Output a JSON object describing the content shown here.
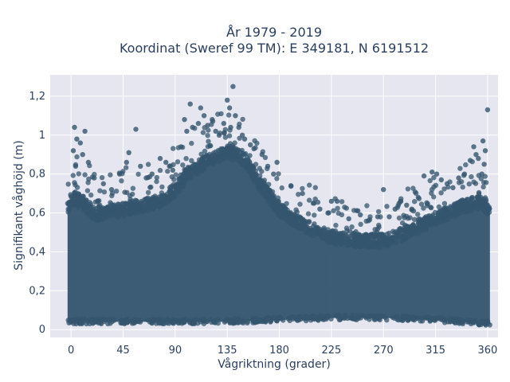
{
  "chart_data": {
    "type": "scatter",
    "title_line1": "År 1979 - 2019",
    "title_line2": "Koordinat (Sweref 99 TM): E 349181, N 6191512",
    "xlabel": "Vågriktning (grader)",
    "ylabel": "Signifikant våghöjd (m)",
    "xlim": [
      -18,
      369
    ],
    "ylim": [
      -0.04,
      1.31
    ],
    "x_ticks": [
      0,
      45,
      90,
      135,
      180,
      225,
      270,
      315,
      360
    ],
    "x_tick_labels": [
      "0",
      "45",
      "90",
      "135",
      "180",
      "225",
      "270",
      "315",
      "360"
    ],
    "y_ticks": [
      0,
      0.2,
      0.4,
      0.6,
      0.8,
      1.0,
      1.2
    ],
    "y_tick_labels": [
      "0",
      "0,2",
      "0,4",
      "0,6",
      "0,8",
      "1",
      "1,2"
    ],
    "grid": true,
    "colors": {
      "marker": "#34566e",
      "plot_bg": "#e5e6f0",
      "grid": "#ffffff",
      "text": "#2a3f5f"
    },
    "dense_band": {
      "x_range": [
        -3,
        362
      ],
      "upper_envelope": [
        [
          -3,
          0.62
        ],
        [
          0,
          0.68
        ],
        [
          10,
          0.66
        ],
        [
          20,
          0.6
        ],
        [
          30,
          0.6
        ],
        [
          45,
          0.62
        ],
        [
          60,
          0.64
        ],
        [
          75,
          0.66
        ],
        [
          90,
          0.72
        ],
        [
          100,
          0.8
        ],
        [
          115,
          0.86
        ],
        [
          135,
          0.92
        ],
        [
          150,
          0.88
        ],
        [
          160,
          0.78
        ],
        [
          170,
          0.7
        ],
        [
          180,
          0.62
        ],
        [
          200,
          0.54
        ],
        [
          225,
          0.48
        ],
        [
          250,
          0.46
        ],
        [
          270,
          0.46
        ],
        [
          290,
          0.5
        ],
        [
          310,
          0.56
        ],
        [
          325,
          0.6
        ],
        [
          340,
          0.64
        ],
        [
          355,
          0.66
        ],
        [
          362,
          0.62
        ]
      ],
      "lower_envelope": [
        [
          -3,
          0.04
        ],
        [
          45,
          0.04
        ],
        [
          90,
          0.04
        ],
        [
          135,
          0.04
        ],
        [
          180,
          0.05
        ],
        [
          225,
          0.06
        ],
        [
          270,
          0.06
        ],
        [
          315,
          0.05
        ],
        [
          362,
          0.03
        ]
      ]
    },
    "outliers": [
      [
        3,
        1.04
      ],
      [
        12,
        1.02
      ],
      [
        5,
        0.98
      ],
      [
        8,
        0.96
      ],
      [
        2,
        0.92
      ],
      [
        10,
        0.9
      ],
      [
        15,
        0.86
      ],
      [
        4,
        0.84
      ],
      [
        20,
        0.78
      ],
      [
        28,
        0.75
      ],
      [
        35,
        0.72
      ],
      [
        42,
        0.8
      ],
      [
        48,
        0.86
      ],
      [
        50,
        0.91
      ],
      [
        56,
        1.03
      ],
      [
        60,
        0.84
      ],
      [
        65,
        0.78
      ],
      [
        70,
        0.8
      ],
      [
        77,
        0.88
      ],
      [
        82,
        0.86
      ],
      [
        85,
        0.84
      ],
      [
        88,
        0.82
      ],
      [
        95,
        0.94
      ],
      [
        98,
        1.08
      ],
      [
        100,
        1.02
      ],
      [
        103,
        1.16
      ],
      [
        105,
        1.04
      ],
      [
        110,
        1.06
      ],
      [
        112,
        1.14
      ],
      [
        115,
        1.1
      ],
      [
        118,
        1.05
      ],
      [
        122,
        1.08
      ],
      [
        125,
        1.02
      ],
      [
        128,
        1.0
      ],
      [
        132,
        1.06
      ],
      [
        135,
        1.18
      ],
      [
        137,
        1.14
      ],
      [
        138,
        1.04
      ],
      [
        140,
        1.25
      ],
      [
        142,
        1.1
      ],
      [
        145,
        1.04
      ],
      [
        148,
        1.0
      ],
      [
        150,
        0.98
      ],
      [
        155,
        0.95
      ],
      [
        158,
        0.93
      ],
      [
        165,
        0.9
      ],
      [
        170,
        0.84
      ],
      [
        175,
        0.8
      ],
      [
        178,
        0.86
      ],
      [
        190,
        0.74
      ],
      [
        200,
        0.7
      ],
      [
        210,
        0.65
      ],
      [
        215,
        0.62
      ],
      [
        222,
        0.6
      ],
      [
        225,
        0.66
      ],
      [
        230,
        0.66
      ],
      [
        240,
        0.57
      ],
      [
        250,
        0.59
      ],
      [
        257,
        0.56
      ],
      [
        265,
        0.58
      ],
      [
        270,
        0.72
      ],
      [
        275,
        0.58
      ],
      [
        280,
        0.62
      ],
      [
        285,
        0.66
      ],
      [
        290,
        0.64
      ],
      [
        296,
        0.61
      ],
      [
        300,
        0.68
      ],
      [
        305,
        0.79
      ],
      [
        312,
        0.81
      ],
      [
        316,
        0.8
      ],
      [
        320,
        0.77
      ],
      [
        325,
        0.75
      ],
      [
        330,
        0.73
      ],
      [
        335,
        0.78
      ],
      [
        340,
        0.8
      ],
      [
        345,
        0.87
      ],
      [
        348,
        0.94
      ],
      [
        350,
        0.9
      ],
      [
        352,
        0.88
      ],
      [
        356,
        0.97
      ],
      [
        358,
        0.92
      ],
      [
        360,
        1.13
      ],
      [
        357,
        0.85
      ],
      [
        355,
        0.8
      ]
    ]
  }
}
